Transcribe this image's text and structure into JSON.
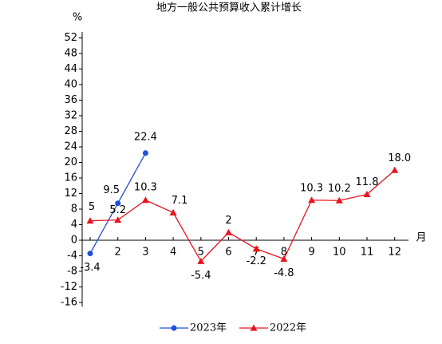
{
  "chart_data": {
    "type": "line",
    "title": "地方一般公共预算收入累计增长",
    "y_label": "%",
    "x_label": "月",
    "categories": [
      null,
      "2",
      "3",
      "4",
      "5",
      "6",
      "7",
      "8",
      "9",
      "10",
      "11",
      "12"
    ],
    "ylim": [
      -16,
      52
    ],
    "yticks": [
      -16,
      -12,
      -8,
      -4,
      0,
      4,
      8,
      12,
      16,
      20,
      24,
      28,
      32,
      36,
      40,
      44,
      48,
      52
    ],
    "legend": "bottom",
    "series": [
      {
        "name": "2023年",
        "color": "#1f50d8",
        "marker": "circle",
        "values": [
          -3.4,
          9.5,
          22.4,
          null,
          null,
          null,
          null,
          null,
          null,
          null,
          null,
          null
        ]
      },
      {
        "name": "2022年",
        "color": "#e8141e",
        "marker": "triangle",
        "values": [
          5,
          5.2,
          10.3,
          7.1,
          -5.4,
          2,
          -2.2,
          -4.8,
          10.3,
          10.2,
          11.8,
          18.0
        ],
        "value_labels": [
          "5",
          "5.2",
          "10.3",
          "7.1",
          "-5.4",
          "2",
          "-2.2",
          "-4.8",
          "10.3",
          "10.2",
          "11.8",
          "18.0"
        ]
      }
    ]
  }
}
